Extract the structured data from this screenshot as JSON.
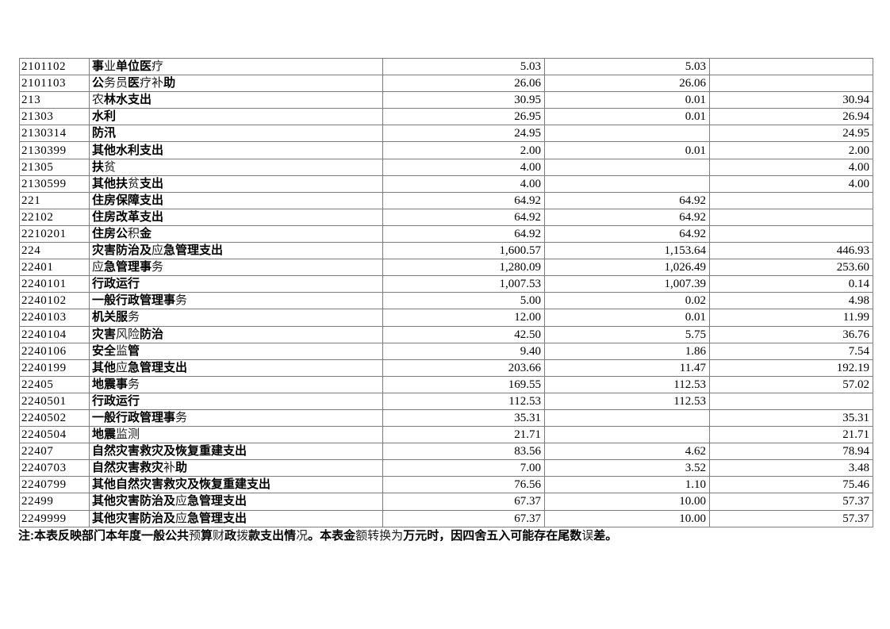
{
  "document": {
    "note": "注:本表反映部门本年度一般公共预算财政拨款支出情况。本表金额转换为万元时，因四舍五入可能存在尾数误差。"
  },
  "colors": {
    "background": "#ffffff",
    "text": "#000000",
    "table_border": "#7d7d7d"
  },
  "table": {
    "rows": [
      {
        "code": "2101102",
        "name": "事业单位医疗",
        "v1": "5.03",
        "v2": "5.03",
        "v3": ""
      },
      {
        "code": "2101103",
        "name": "公务员医疗补助",
        "v1": "26.06",
        "v2": "26.06",
        "v3": ""
      },
      {
        "code": "213",
        "name": "农林水支出",
        "v1": "30.95",
        "v2": "0.01",
        "v3": "30.94"
      },
      {
        "code": "21303",
        "name": "水利",
        "v1": "26.95",
        "v2": "0.01",
        "v3": "26.94"
      },
      {
        "code": "2130314",
        "name": "防汛",
        "v1": "24.95",
        "v2": "",
        "v3": "24.95"
      },
      {
        "code": "2130399",
        "name": "其他水利支出",
        "v1": "2.00",
        "v2": "0.01",
        "v3": "2.00"
      },
      {
        "code": "21305",
        "name": "扶贫",
        "v1": "4.00",
        "v2": "",
        "v3": "4.00"
      },
      {
        "code": "2130599",
        "name": "其他扶贫支出",
        "v1": "4.00",
        "v2": "",
        "v3": "4.00"
      },
      {
        "code": "221",
        "name": "住房保障支出",
        "v1": "64.92",
        "v2": "64.92",
        "v3": ""
      },
      {
        "code": "22102",
        "name": "住房改革支出",
        "v1": "64.92",
        "v2": "64.92",
        "v3": ""
      },
      {
        "code": "2210201",
        "name": "住房公积金",
        "v1": "64.92",
        "v2": "64.92",
        "v3": ""
      },
      {
        "code": "224",
        "name": "灾害防治及应急管理支出",
        "v1": "1,600.57",
        "v2": "1,153.64",
        "v3": "446.93"
      },
      {
        "code": "22401",
        "name": "应急管理事务",
        "v1": "1,280.09",
        "v2": "1,026.49",
        "v3": "253.60"
      },
      {
        "code": "2240101",
        "name": "行政运行",
        "v1": "1,007.53",
        "v2": "1,007.39",
        "v3": "0.14"
      },
      {
        "code": "2240102",
        "name": "一般行政管理事务",
        "v1": "5.00",
        "v2": "0.02",
        "v3": "4.98"
      },
      {
        "code": "2240103",
        "name": "机关服务",
        "v1": "12.00",
        "v2": "0.01",
        "v3": "11.99"
      },
      {
        "code": "2240104",
        "name": "灾害风险防治",
        "v1": "42.50",
        "v2": "5.75",
        "v3": "36.76"
      },
      {
        "code": "2240106",
        "name": "安全监管",
        "v1": "9.40",
        "v2": "1.86",
        "v3": "7.54"
      },
      {
        "code": "2240199",
        "name": "其他应急管理支出",
        "v1": "203.66",
        "v2": "11.47",
        "v3": "192.19"
      },
      {
        "code": "22405",
        "name": "地震事务",
        "v1": "169.55",
        "v2": "112.53",
        "v3": "57.02"
      },
      {
        "code": "2240501",
        "name": "行政运行",
        "v1": "112.53",
        "v2": "112.53",
        "v3": ""
      },
      {
        "code": "2240502",
        "name": "一般行政管理事务",
        "v1": "35.31",
        "v2": "",
        "v3": "35.31"
      },
      {
        "code": "2240504",
        "name": "地震监测",
        "v1": "21.71",
        "v2": "",
        "v3": "21.71"
      },
      {
        "code": "22407",
        "name": "自然灾害救灾及恢复重建支出",
        "v1": "83.56",
        "v2": "4.62",
        "v3": "78.94"
      },
      {
        "code": "2240703",
        "name": "自然灾害救灾补助",
        "v1": "7.00",
        "v2": "3.52",
        "v3": "3.48"
      },
      {
        "code": "2240799",
        "name": "其他自然灾害救灾及恢复重建支出",
        "v1": "76.56",
        "v2": "1.10",
        "v3": "75.46"
      },
      {
        "code": "22499",
        "name": "其他灾害防治及应急管理支出",
        "v1": "67.37",
        "v2": "10.00",
        "v3": "57.37"
      },
      {
        "code": "2249999",
        "name": "其他灾害防治及应急管理支出",
        "v1": "67.37",
        "v2": "10.00",
        "v3": "57.37"
      }
    ]
  }
}
